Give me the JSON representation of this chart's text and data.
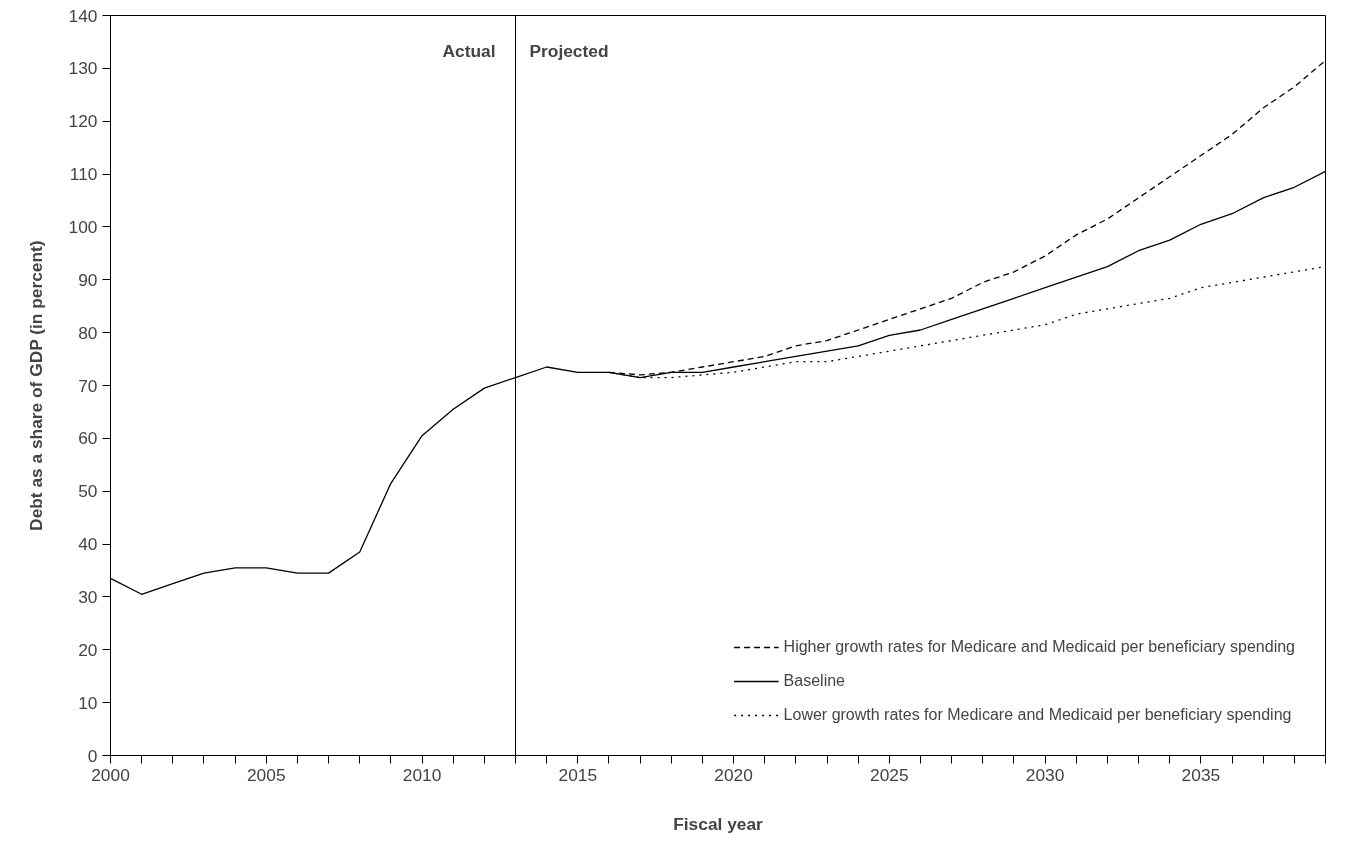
{
  "chart_data": {
    "type": "line",
    "xlabel": "Fiscal year",
    "ylabel": "Debt as a share of GDP (in percent)",
    "xlim": [
      2000,
      2039
    ],
    "ylim": [
      0,
      140
    ],
    "xticks": [
      2000,
      {
        "value": 2001,
        "label": null
      },
      {
        "value": 2002,
        "label": null
      },
      {
        "value": 2003,
        "label": null
      },
      {
        "value": 2004,
        "label": null
      },
      2005,
      {
        "value": 2006,
        "label": null
      },
      {
        "value": 2007,
        "label": null
      },
      {
        "value": 2008,
        "label": null
      },
      {
        "value": 2009,
        "label": null
      },
      2010,
      {
        "value": 2011,
        "label": null
      },
      {
        "value": 2012,
        "label": null
      },
      {
        "value": 2013,
        "label": null
      },
      {
        "value": 2014,
        "label": null
      },
      2015,
      {
        "value": 2016,
        "label": null
      },
      {
        "value": 2017,
        "label": null
      },
      {
        "value": 2018,
        "label": null
      },
      {
        "value": 2019,
        "label": null
      },
      2020,
      {
        "value": 2021,
        "label": null
      },
      {
        "value": 2022,
        "label": null
      },
      {
        "value": 2023,
        "label": null
      },
      {
        "value": 2024,
        "label": null
      },
      2025,
      {
        "value": 2026,
        "label": null
      },
      {
        "value": 2027,
        "label": null
      },
      {
        "value": 2028,
        "label": null
      },
      {
        "value": 2029,
        "label": null
      },
      2030,
      {
        "value": 2031,
        "label": null
      },
      {
        "value": 2032,
        "label": null
      },
      {
        "value": 2033,
        "label": null
      },
      {
        "value": 2034,
        "label": null
      },
      2035,
      {
        "value": 2036,
        "label": null
      },
      {
        "value": 2037,
        "label": null
      },
      {
        "value": 2038,
        "label": null
      },
      {
        "value": 2039,
        "label": null
      }
    ],
    "yticks": [
      0,
      10,
      20,
      30,
      40,
      50,
      60,
      70,
      80,
      90,
      100,
      110,
      120,
      130,
      140
    ],
    "grid": false,
    "legend": "bottom right",
    "marker": "none",
    "ref_lines": [
      {
        "axis": "x",
        "value": 2013,
        "color": "#000000",
        "line_style": "solid"
      }
    ],
    "annotations": [
      "Actual",
      "Projected"
    ],
    "series": [
      {
        "name": "Higher growth rates for Medicare and Medicaid per beneficiary spending",
        "color": "#000000",
        "line_style": "dashed",
        "x": [
          2016,
          2017,
          2018,
          2019,
          2020,
          2021,
          2022,
          2023,
          2024,
          2025,
          2026,
          2027,
          2028,
          2029,
          2030,
          2031,
          2032,
          2033,
          2034,
          2035,
          2036,
          2037,
          2038,
          2039
        ],
        "values": [
          72.5,
          72,
          72.5,
          73.5,
          74.5,
          75.5,
          77.5,
          78.5,
          80.5,
          82.5,
          84.5,
          86.5,
          89.5,
          91.5,
          94.5,
          98.5,
          101.5,
          105.5,
          109.5,
          113.5,
          117.5,
          122.5,
          126.5,
          131.5
        ]
      },
      {
        "name": "Baseline",
        "color": "#000000",
        "line_style": "solid",
        "x": [
          2000,
          2001,
          2002,
          2003,
          2004,
          2005,
          2006,
          2007,
          2008,
          2009,
          2010,
          2011,
          2012,
          2013,
          2014,
          2015,
          2016,
          2017,
          2018,
          2019,
          2020,
          2021,
          2022,
          2023,
          2024,
          2025,
          2026,
          2027,
          2028,
          2029,
          2030,
          2031,
          2032,
          2033,
          2034,
          2035,
          2036,
          2037,
          2038,
          2039
        ],
        "values": [
          33.5,
          30.5,
          32.5,
          34.5,
          35.5,
          35.5,
          34.5,
          34.5,
          38.5,
          51.5,
          60.5,
          65.5,
          69.5,
          71.5,
          73.5,
          72.5,
          72.5,
          71.5,
          72.5,
          72.5,
          73.5,
          74.5,
          75.5,
          76.5,
          77.5,
          79.5,
          80.5,
          82.5,
          84.5,
          86.5,
          88.5,
          90.5,
          92.5,
          95.5,
          97.5,
          100.5,
          102.5,
          105.5,
          107.5,
          110.5
        ]
      },
      {
        "name": "Lower growth rates for Medicare and Medicaid per beneficiary spending",
        "color": "#000000",
        "line_style": "dotted",
        "x": [
          2016,
          2017,
          2018,
          2019,
          2020,
          2021,
          2022,
          2023,
          2024,
          2025,
          2026,
          2027,
          2028,
          2029,
          2030,
          2031,
          2032,
          2033,
          2034,
          2035,
          2036,
          2037,
          2038,
          2039
        ],
        "values": [
          72.5,
          71.5,
          71.5,
          72,
          72.5,
          73.5,
          74.5,
          74.5,
          75.5,
          76.5,
          77.5,
          78.5,
          79.5,
          80.5,
          81.5,
          83.5,
          84.5,
          85.5,
          86.5,
          88.5,
          89.5,
          90.5,
          91.5,
          92.5
        ]
      }
    ]
  }
}
